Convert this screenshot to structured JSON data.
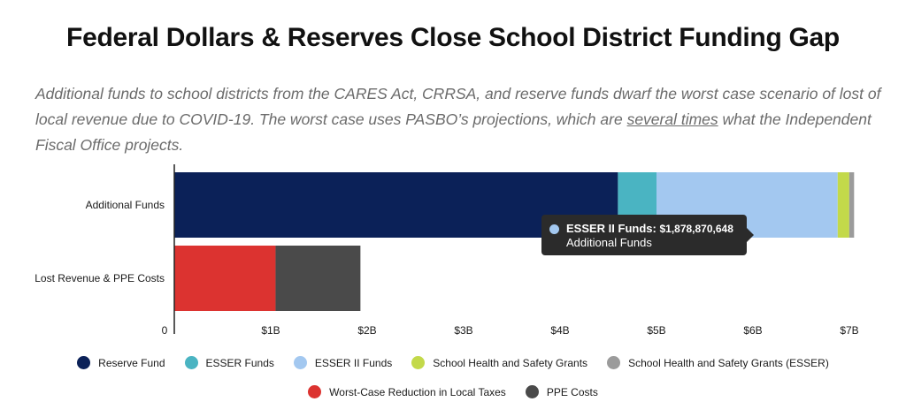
{
  "title": "Federal Dollars & Reserves Close School District Funding Gap",
  "subtitle": {
    "before": "Additional funds to school districts from the CARES Act, CRRSA, and reserve funds dwarf the worst case scenario of lost of local revenue due to COVID-19. The worst case uses PASBO’s projections, which are ",
    "underlined": "several times",
    "after": " what the Independent Fiscal Office projects."
  },
  "chart_data": {
    "type": "bar",
    "orientation": "horizontal",
    "stacked": true,
    "categories": [
      "Additional Funds",
      "Lost Revenue & PPE Costs"
    ],
    "series": [
      {
        "name": "Reserve Fund",
        "color": "#0b2158",
        "values": [
          4600000000,
          0
        ]
      },
      {
        "name": "ESSER Funds",
        "color": "#4ab4c2",
        "values": [
          400000000,
          0
        ]
      },
      {
        "name": "ESSER II Funds",
        "color": "#a3c8f0",
        "values": [
          1878870648,
          0
        ]
      },
      {
        "name": "School Health and Safety Grants",
        "color": "#c3d94a",
        "values": [
          120000000,
          0
        ]
      },
      {
        "name": "School Health and Safety Grants (ESSER)",
        "color": "#9b9b9b",
        "values": [
          50000000,
          0
        ]
      },
      {
        "name": "Worst-Case Reduction in Local Taxes",
        "color": "#dc3330",
        "values": [
          0,
          1050000000
        ]
      },
      {
        "name": "PPE Costs",
        "color": "#4a4a4a",
        "values": [
          0,
          880000000
        ]
      }
    ],
    "x_ticks": [
      "0",
      "$1B",
      "$2B",
      "$3B",
      "$4B",
      "$5B",
      "$6B",
      "$7B"
    ],
    "xlim": [
      0,
      7000000000
    ],
    "legend_position": "bottom",
    "tooltip": {
      "series": "ESSER II Funds:",
      "value": "$1,878,870,648",
      "category": "Additional Funds",
      "color": "#a3c8f0"
    }
  }
}
